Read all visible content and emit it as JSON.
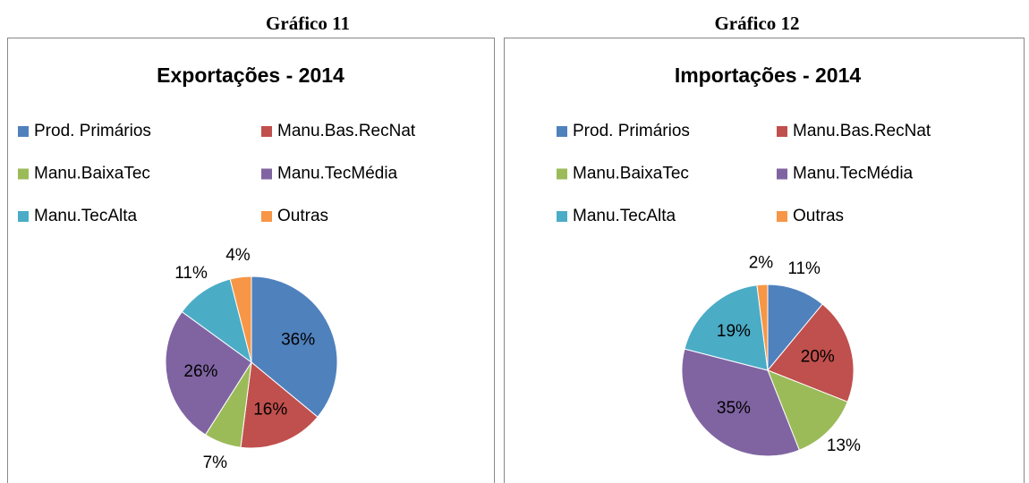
{
  "chart_data": [
    {
      "type": "pie",
      "caption": "Gráfico 11",
      "title": "Exportações - 2014",
      "categories": [
        "Prod. Primários",
        "Manu.Bas.RecNat",
        "Manu.BaixaTec",
        "Manu.TecMédia",
        "Manu.TecAlta",
        "Outras"
      ],
      "values": [
        36,
        16,
        7,
        26,
        11,
        4
      ],
      "value_labels": [
        "36%",
        "16%",
        "7%",
        "26%",
        "11%",
        "4%"
      ],
      "colors": [
        "#4f81bd",
        "#c0504d",
        "#9bbb59",
        "#8064a2",
        "#4bacc6",
        "#f79646"
      ],
      "legend": "top"
    },
    {
      "type": "pie",
      "caption": "Gráfico 12",
      "title": "Importações - 2014",
      "categories": [
        "Prod. Primários",
        "Manu.Bas.RecNat",
        "Manu.BaixaTec",
        "Manu.TecMédia",
        "Manu.TecAlta",
        "Outras"
      ],
      "values": [
        11,
        20,
        13,
        35,
        19,
        2
      ],
      "value_labels": [
        "11%",
        "20%",
        "13%",
        "35%",
        "19%",
        "2%"
      ],
      "colors": [
        "#4f81bd",
        "#c0504d",
        "#9bbb59",
        "#8064a2",
        "#4bacc6",
        "#f79646"
      ],
      "legend": "top"
    }
  ]
}
